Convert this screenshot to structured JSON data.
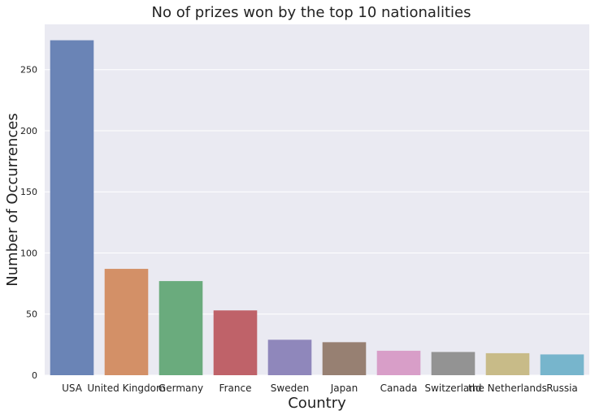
{
  "chart_data": {
    "type": "bar",
    "title": "No of prizes won by the top 10 nationalities",
    "xlabel": "Country",
    "ylabel": "Number of Occurrences",
    "categories": [
      "USA",
      "United Kingdom",
      "Germany",
      "France",
      "Sweden",
      "Japan",
      "Canada",
      "Switzerland",
      "the Netherlands",
      "Russia"
    ],
    "values": [
      274,
      87,
      77,
      53,
      29,
      27,
      20,
      19,
      18,
      17
    ],
    "ylim": [
      0,
      287
    ],
    "yticks": [
      0,
      50,
      100,
      150,
      200,
      250
    ],
    "colors": [
      "#6a84b6",
      "#d39067",
      "#6aab7d",
      "#bf6269",
      "#8f87bb",
      "#978072",
      "#d89ec8",
      "#939393",
      "#c8bb88",
      "#77b5cc"
    ],
    "grid": true,
    "background": "#eaeaf2"
  }
}
